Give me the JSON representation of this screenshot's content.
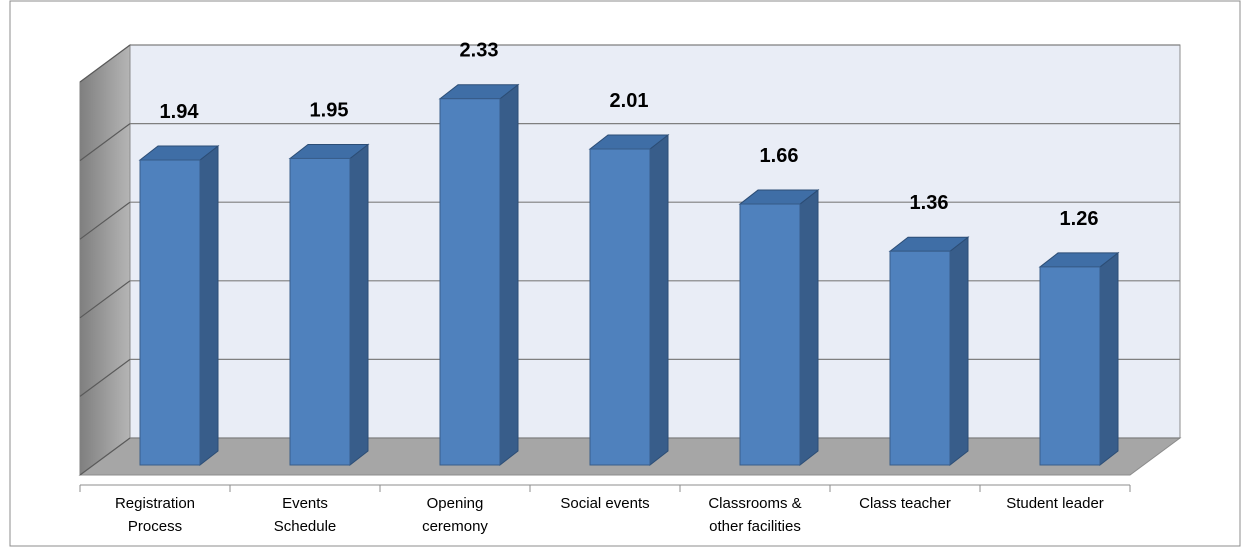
{
  "chart_data": {
    "type": "bar3d",
    "categories": [
      "Registration\nProcess",
      "Events\nSchedule",
      "Opening\nceremony",
      "Social events",
      "Classrooms &\nother facilities",
      "Class teacher",
      "Student leader"
    ],
    "values": [
      1.94,
      1.95,
      2.33,
      2.01,
      1.66,
      1.36,
      1.26
    ],
    "color": "#4f81bd",
    "ylim": [
      0,
      2.5
    ],
    "yticks": [
      0,
      0.5,
      1,
      1.5,
      2,
      2.5
    ],
    "grid": true
  }
}
